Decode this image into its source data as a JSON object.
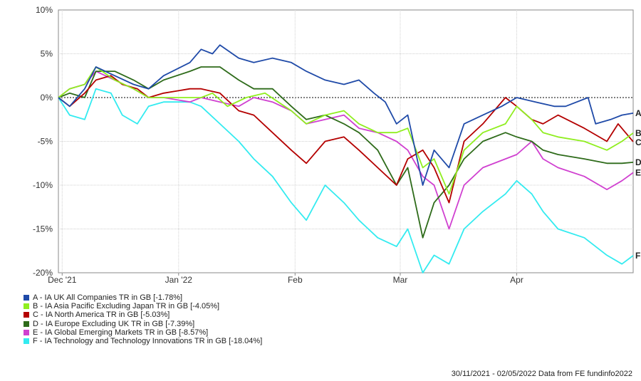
{
  "chart_data": {
    "type": "line",
    "title": "",
    "xlabel": "",
    "ylabel": "",
    "ylim": [
      -20,
      10
    ],
    "y_ticks": [
      "10%",
      "5%",
      "0%",
      "-5%",
      "-10%",
      "-15%",
      "-20%"
    ],
    "y_tick_values": [
      10,
      5,
      0,
      -5,
      -10,
      -15,
      -20
    ],
    "x_range": [
      "2021-11-30",
      "2022-05-02"
    ],
    "x_ticks": [
      {
        "label": "Dec '21",
        "date": "2021-12-01"
      },
      {
        "label": "Jan '22",
        "date": "2022-01-01"
      },
      {
        "label": "Feb",
        "date": "2022-02-01"
      },
      {
        "label": "Mar",
        "date": "2022-03-01"
      },
      {
        "label": "Apr",
        "date": "2022-04-01"
      }
    ],
    "grid": true,
    "zero_line": "dotted",
    "legend_position": "bottom-left",
    "series": [
      {
        "letter": "A",
        "name": "A - IA UK All Companies TR in GB [-1.78%]",
        "color": "#1f4aa8",
        "points": [
          [
            "2021-11-30",
            0
          ],
          [
            "2021-12-03",
            -1
          ],
          [
            "2021-12-07",
            1
          ],
          [
            "2021-12-10",
            3.5
          ],
          [
            "2021-12-15",
            2.5
          ],
          [
            "2021-12-20",
            1.5
          ],
          [
            "2021-12-24",
            1
          ],
          [
            "2021-12-28",
            2.5
          ],
          [
            "2022-01-04",
            4
          ],
          [
            "2022-01-07",
            5.5
          ],
          [
            "2022-01-10",
            5
          ],
          [
            "2022-01-12",
            6
          ],
          [
            "2022-01-17",
            4.5
          ],
          [
            "2022-01-21",
            4
          ],
          [
            "2022-01-26",
            4.5
          ],
          [
            "2022-01-31",
            4
          ],
          [
            "2022-02-04",
            3
          ],
          [
            "2022-02-09",
            2
          ],
          [
            "2022-02-14",
            1.5
          ],
          [
            "2022-02-18",
            2
          ],
          [
            "2022-02-22",
            0.5
          ],
          [
            "2022-02-25",
            -0.5
          ],
          [
            "2022-02-28",
            -3
          ],
          [
            "2022-03-03",
            -2
          ],
          [
            "2022-03-07",
            -10
          ],
          [
            "2022-03-10",
            -6
          ],
          [
            "2022-03-14",
            -8
          ],
          [
            "2022-03-18",
            -3
          ],
          [
            "2022-03-23",
            -2
          ],
          [
            "2022-03-28",
            -1
          ],
          [
            "2022-04-01",
            0
          ],
          [
            "2022-04-06",
            -0.5
          ],
          [
            "2022-04-11",
            -1
          ],
          [
            "2022-04-14",
            -1
          ],
          [
            "2022-04-20",
            0
          ],
          [
            "2022-04-22",
            -3
          ],
          [
            "2022-04-26",
            -2.5
          ],
          [
            "2022-04-29",
            -2
          ],
          [
            "2022-05-02",
            -1.78
          ]
        ]
      },
      {
        "letter": "B",
        "name": "B - IA Asia Pacific Excluding Japan TR in GB [-4.05%]",
        "color": "#90ee20",
        "points": [
          [
            "2021-11-30",
            0
          ],
          [
            "2021-12-03",
            1
          ],
          [
            "2021-12-07",
            1.5
          ],
          [
            "2021-12-10",
            3.5
          ],
          [
            "2021-12-15",
            2
          ],
          [
            "2021-12-20",
            1
          ],
          [
            "2021-12-24",
            0
          ],
          [
            "2021-12-28",
            0
          ],
          [
            "2022-01-04",
            0
          ],
          [
            "2022-01-07",
            0
          ],
          [
            "2022-01-10",
            0.5
          ],
          [
            "2022-01-14",
            -1
          ],
          [
            "2022-01-19",
            0
          ],
          [
            "2022-01-24",
            0.5
          ],
          [
            "2022-01-31",
            -1.5
          ],
          [
            "2022-02-04",
            -3
          ],
          [
            "2022-02-09",
            -2
          ],
          [
            "2022-02-14",
            -1.5
          ],
          [
            "2022-02-18",
            -3
          ],
          [
            "2022-02-23",
            -4
          ],
          [
            "2022-02-28",
            -4
          ],
          [
            "2022-03-03",
            -3.5
          ],
          [
            "2022-03-07",
            -8
          ],
          [
            "2022-03-10",
            -7
          ],
          [
            "2022-03-14",
            -11
          ],
          [
            "2022-03-18",
            -6
          ],
          [
            "2022-03-23",
            -4
          ],
          [
            "2022-03-29",
            -3
          ],
          [
            "2022-04-01",
            -1
          ],
          [
            "2022-04-05",
            -2.5
          ],
          [
            "2022-04-08",
            -4
          ],
          [
            "2022-04-12",
            -4.5
          ],
          [
            "2022-04-19",
            -5
          ],
          [
            "2022-04-25",
            -6
          ],
          [
            "2022-04-29",
            -5
          ],
          [
            "2022-05-02",
            -4.05
          ]
        ]
      },
      {
        "letter": "C",
        "name": "C - IA North America TR in GB [-5.03%]",
        "color": "#b40000",
        "points": [
          [
            "2021-11-30",
            0
          ],
          [
            "2021-12-03",
            -1
          ],
          [
            "2021-12-07",
            0.5
          ],
          [
            "2021-12-10",
            2
          ],
          [
            "2021-12-14",
            2.5
          ],
          [
            "2021-12-17",
            1.5
          ],
          [
            "2021-12-21",
            1
          ],
          [
            "2021-12-24",
            0
          ],
          [
            "2021-12-28",
            0.5
          ],
          [
            "2022-01-04",
            1
          ],
          [
            "2022-01-07",
            1
          ],
          [
            "2022-01-12",
            0.5
          ],
          [
            "2022-01-17",
            -1.5
          ],
          [
            "2022-01-21",
            -2
          ],
          [
            "2022-01-26",
            -4
          ],
          [
            "2022-01-31",
            -6
          ],
          [
            "2022-02-04",
            -7.5
          ],
          [
            "2022-02-09",
            -5
          ],
          [
            "2022-02-14",
            -4.5
          ],
          [
            "2022-02-18",
            -6
          ],
          [
            "2022-02-23",
            -8
          ],
          [
            "2022-02-28",
            -10
          ],
          [
            "2022-03-03",
            -7
          ],
          [
            "2022-03-07",
            -6
          ],
          [
            "2022-03-10",
            -8
          ],
          [
            "2022-03-14",
            -12
          ],
          [
            "2022-03-18",
            -5
          ],
          [
            "2022-03-23",
            -3
          ],
          [
            "2022-03-29",
            0
          ],
          [
            "2022-04-01",
            -1
          ],
          [
            "2022-04-05",
            -2.5
          ],
          [
            "2022-04-08",
            -3
          ],
          [
            "2022-04-12",
            -2
          ],
          [
            "2022-04-19",
            -3.5
          ],
          [
            "2022-04-25",
            -5
          ],
          [
            "2022-04-28",
            -3
          ],
          [
            "2022-05-02",
            -5.03
          ]
        ]
      },
      {
        "letter": "D",
        "name": "D - IA Europe Excluding UK TR in GB [-7.39%]",
        "color": "#2e6b1a",
        "points": [
          [
            "2021-11-30",
            0
          ],
          [
            "2021-12-03",
            0.5
          ],
          [
            "2021-12-07",
            0
          ],
          [
            "2021-12-10",
            3
          ],
          [
            "2021-12-15",
            3
          ],
          [
            "2021-12-20",
            2
          ],
          [
            "2021-12-24",
            1
          ],
          [
            "2021-12-28",
            2
          ],
          [
            "2022-01-04",
            3
          ],
          [
            "2022-01-07",
            3.5
          ],
          [
            "2022-01-12",
            3.5
          ],
          [
            "2022-01-17",
            2
          ],
          [
            "2022-01-21",
            1
          ],
          [
            "2022-01-26",
            1
          ],
          [
            "2022-01-31",
            -1
          ],
          [
            "2022-02-04",
            -2.5
          ],
          [
            "2022-02-09",
            -2
          ],
          [
            "2022-02-14",
            -3
          ],
          [
            "2022-02-18",
            -4
          ],
          [
            "2022-02-23",
            -6
          ],
          [
            "2022-02-28",
            -10
          ],
          [
            "2022-03-03",
            -8
          ],
          [
            "2022-03-07",
            -16
          ],
          [
            "2022-03-10",
            -12
          ],
          [
            "2022-03-14",
            -10
          ],
          [
            "2022-03-18",
            -7
          ],
          [
            "2022-03-23",
            -5
          ],
          [
            "2022-03-29",
            -4
          ],
          [
            "2022-04-01",
            -4.5
          ],
          [
            "2022-04-05",
            -5
          ],
          [
            "2022-04-08",
            -6
          ],
          [
            "2022-04-12",
            -6.5
          ],
          [
            "2022-04-19",
            -7
          ],
          [
            "2022-04-25",
            -7.5
          ],
          [
            "2022-04-29",
            -7.5
          ],
          [
            "2022-05-02",
            -7.39
          ]
        ]
      },
      {
        "letter": "E",
        "name": "E - IA Global Emerging Markets TR in GB [-8.57%]",
        "color": "#d040d0",
        "points": [
          [
            "2021-11-30",
            0
          ],
          [
            "2021-12-03",
            1
          ],
          [
            "2021-12-07",
            1.5
          ],
          [
            "2021-12-10",
            3
          ],
          [
            "2021-12-15",
            2
          ],
          [
            "2021-12-20",
            1
          ],
          [
            "2021-12-24",
            0
          ],
          [
            "2021-12-28",
            0
          ],
          [
            "2022-01-04",
            -0.5
          ],
          [
            "2022-01-07",
            0
          ],
          [
            "2022-01-12",
            -0.5
          ],
          [
            "2022-01-17",
            -1
          ],
          [
            "2022-01-21",
            0
          ],
          [
            "2022-01-26",
            -0.5
          ],
          [
            "2022-01-31",
            -1.5
          ],
          [
            "2022-02-04",
            -3
          ],
          [
            "2022-02-09",
            -2.5
          ],
          [
            "2022-02-14",
            -2
          ],
          [
            "2022-02-18",
            -3.5
          ],
          [
            "2022-02-23",
            -4
          ],
          [
            "2022-02-28",
            -5
          ],
          [
            "2022-03-03",
            -6
          ],
          [
            "2022-03-07",
            -9
          ],
          [
            "2022-03-10",
            -10
          ],
          [
            "2022-03-14",
            -15
          ],
          [
            "2022-03-18",
            -10
          ],
          [
            "2022-03-23",
            -8
          ],
          [
            "2022-03-29",
            -7
          ],
          [
            "2022-04-01",
            -6.5
          ],
          [
            "2022-04-05",
            -5
          ],
          [
            "2022-04-08",
            -7
          ],
          [
            "2022-04-12",
            -8
          ],
          [
            "2022-04-19",
            -9
          ],
          [
            "2022-04-25",
            -10.5
          ],
          [
            "2022-04-29",
            -9.5
          ],
          [
            "2022-05-02",
            -8.57
          ]
        ]
      },
      {
        "letter": "F",
        "name": "F - IA Technology and Technology Innovations TR in GB [-18.04%]",
        "color": "#33ebf0",
        "points": [
          [
            "2021-11-30",
            0
          ],
          [
            "2021-12-03",
            -2
          ],
          [
            "2021-12-07",
            -2.5
          ],
          [
            "2021-12-10",
            1
          ],
          [
            "2021-12-14",
            0.5
          ],
          [
            "2021-12-17",
            -2
          ],
          [
            "2021-12-21",
            -3
          ],
          [
            "2021-12-24",
            -1
          ],
          [
            "2021-12-28",
            -0.5
          ],
          [
            "2022-01-04",
            -0.5
          ],
          [
            "2022-01-07",
            -1
          ],
          [
            "2022-01-12",
            -3
          ],
          [
            "2022-01-17",
            -5
          ],
          [
            "2022-01-21",
            -7
          ],
          [
            "2022-01-26",
            -9
          ],
          [
            "2022-01-31",
            -12
          ],
          [
            "2022-02-04",
            -14
          ],
          [
            "2022-02-09",
            -10
          ],
          [
            "2022-02-14",
            -12
          ],
          [
            "2022-02-18",
            -14
          ],
          [
            "2022-02-23",
            -16
          ],
          [
            "2022-02-28",
            -17
          ],
          [
            "2022-03-03",
            -15
          ],
          [
            "2022-03-07",
            -20
          ],
          [
            "2022-03-10",
            -18
          ],
          [
            "2022-03-14",
            -19
          ],
          [
            "2022-03-18",
            -15
          ],
          [
            "2022-03-23",
            -13
          ],
          [
            "2022-03-29",
            -11
          ],
          [
            "2022-04-01",
            -9.5
          ],
          [
            "2022-04-05",
            -11
          ],
          [
            "2022-04-08",
            -13
          ],
          [
            "2022-04-12",
            -15
          ],
          [
            "2022-04-19",
            -16
          ],
          [
            "2022-04-25",
            -18
          ],
          [
            "2022-04-29",
            -19
          ],
          [
            "2022-05-02",
            -18.04
          ]
        ]
      }
    ]
  },
  "footer": {
    "text": "30/11/2021 - 02/05/2022 Data from FE fundinfo2022"
  }
}
